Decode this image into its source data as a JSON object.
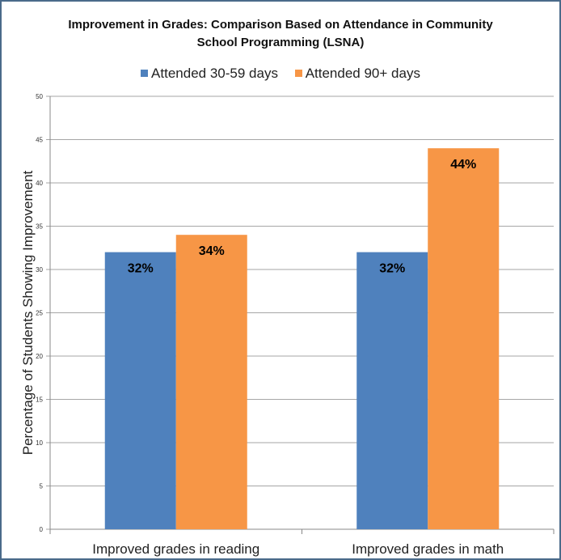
{
  "chart_data": {
    "type": "bar",
    "title_lines": [
      "Improvement in Grades: Comparison Based on Attendance in Community",
      "School Programming (LSNA)"
    ],
    "ylabel": "Percentage of Students Showing Improvement",
    "xlabel": "",
    "ylim": [
      0,
      50
    ],
    "yticks": [
      0,
      5,
      10,
      15,
      20,
      25,
      30,
      35,
      40,
      45,
      50
    ],
    "categories": [
      "Improved grades in reading",
      "Improved grades in math"
    ],
    "series": [
      {
        "name": "Attended 30-59 days",
        "color": "#4f81bd",
        "values": [
          32,
          32
        ],
        "labels": [
          "32%",
          "32%"
        ]
      },
      {
        "name": "Attended 90+ days",
        "color": "#f79646",
        "values": [
          34,
          44
        ],
        "labels": [
          "34%",
          "44%"
        ]
      }
    ],
    "grid": true,
    "legend_position": "top"
  }
}
